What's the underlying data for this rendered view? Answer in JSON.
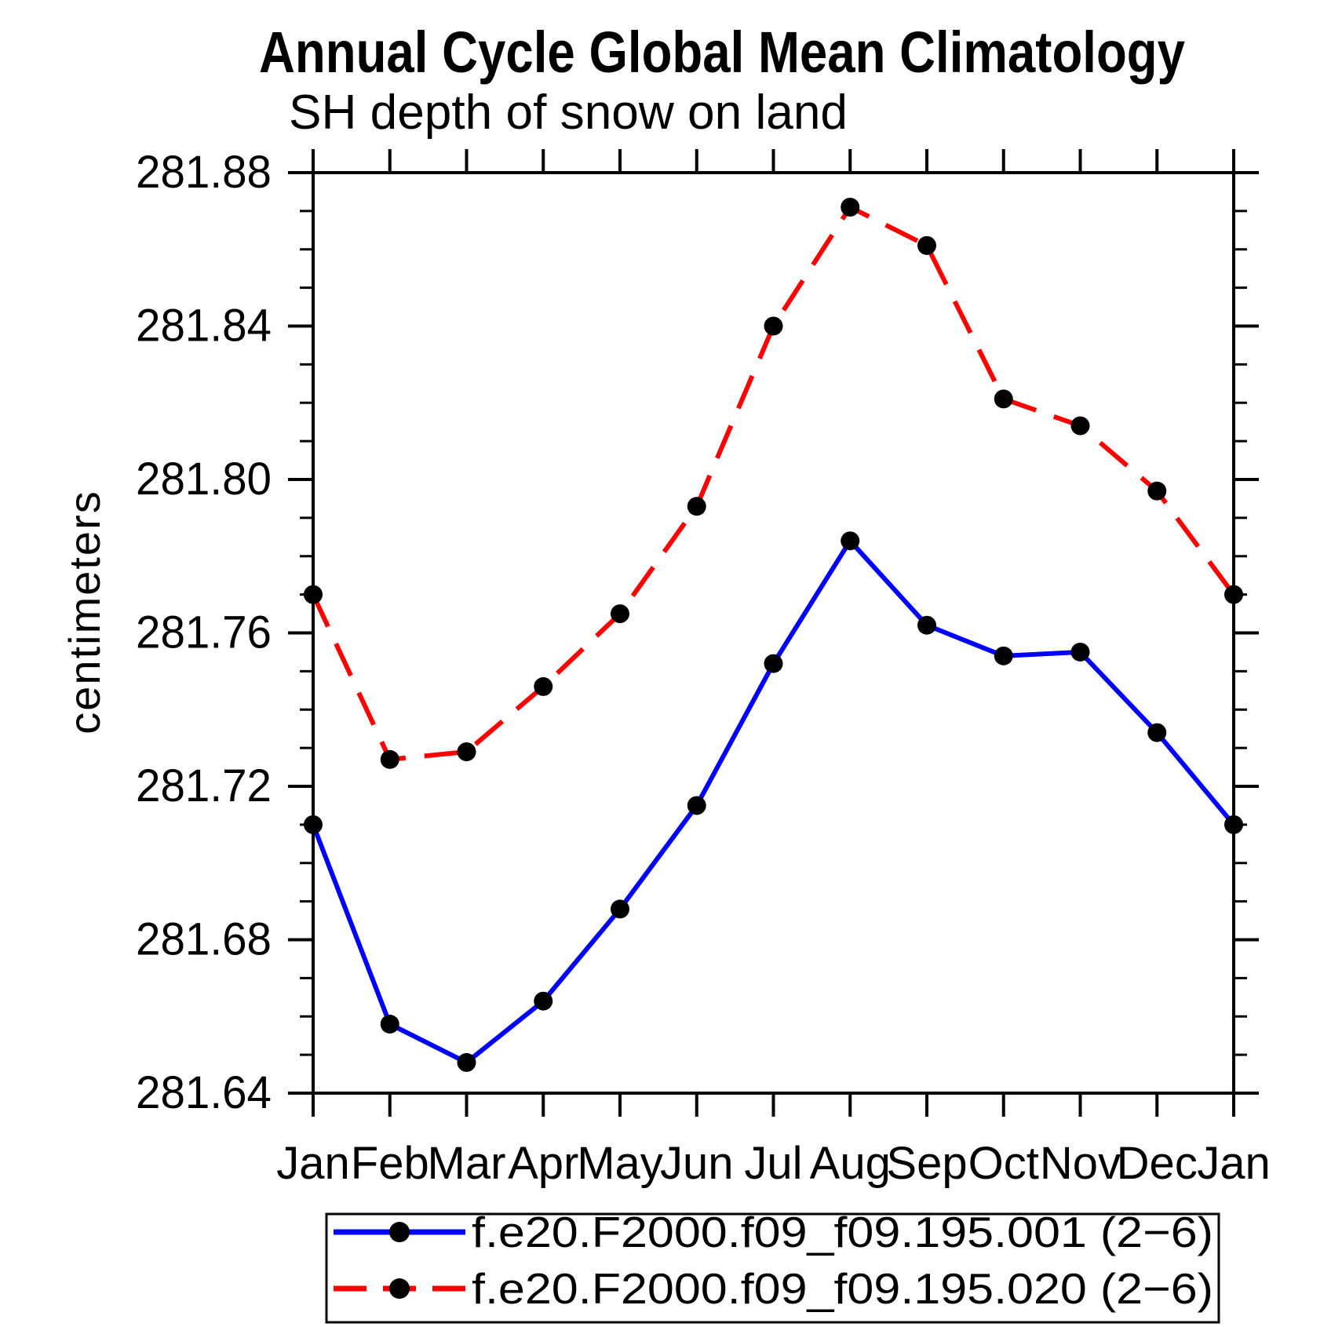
{
  "title": "Annual Cycle Global Mean Climatology",
  "subtitle": "SH depth of snow on land",
  "chart_data": {
    "type": "line",
    "title": "Annual Cycle Global Mean Climatology",
    "subtitle": "SH depth of snow on land",
    "xlabel": "",
    "ylabel": "centimeters",
    "categories": [
      "Jan",
      "Feb",
      "Mar",
      "Apr",
      "May",
      "Jun",
      "Jul",
      "Aug",
      "Sep",
      "Oct",
      "Nov",
      "Dec",
      "Jan"
    ],
    "ylim": [
      281.64,
      281.88
    ],
    "yticks_major": [
      281.64,
      281.68,
      281.72,
      281.76,
      281.8,
      281.84,
      281.88
    ],
    "ytick_labels": [
      "281.64",
      "281.68",
      "281.72",
      "281.76",
      "281.80",
      "281.84",
      "281.88"
    ],
    "yminor_step": 0.01,
    "grid": false,
    "legend_position": "bottom",
    "series": [
      {
        "name": "f.e20.F2000.f09_f09.195.001 (2−6)",
        "color": "#0000ff",
        "style": "solid",
        "marker": "circle",
        "marker_color": "#000000",
        "values": [
          281.71,
          281.658,
          281.648,
          281.664,
          281.688,
          281.715,
          281.752,
          281.784,
          281.762,
          281.754,
          281.755,
          281.734,
          281.71
        ]
      },
      {
        "name": "f.e20.F2000.f09_f09.195.020 (2−6)",
        "color": "#ff0000",
        "style": "dashed",
        "marker": "circle",
        "marker_color": "#000000",
        "values": [
          281.77,
          281.727,
          281.729,
          281.746,
          281.765,
          281.793,
          281.84,
          281.871,
          281.861,
          281.821,
          281.814,
          281.797,
          281.77
        ]
      }
    ]
  }
}
